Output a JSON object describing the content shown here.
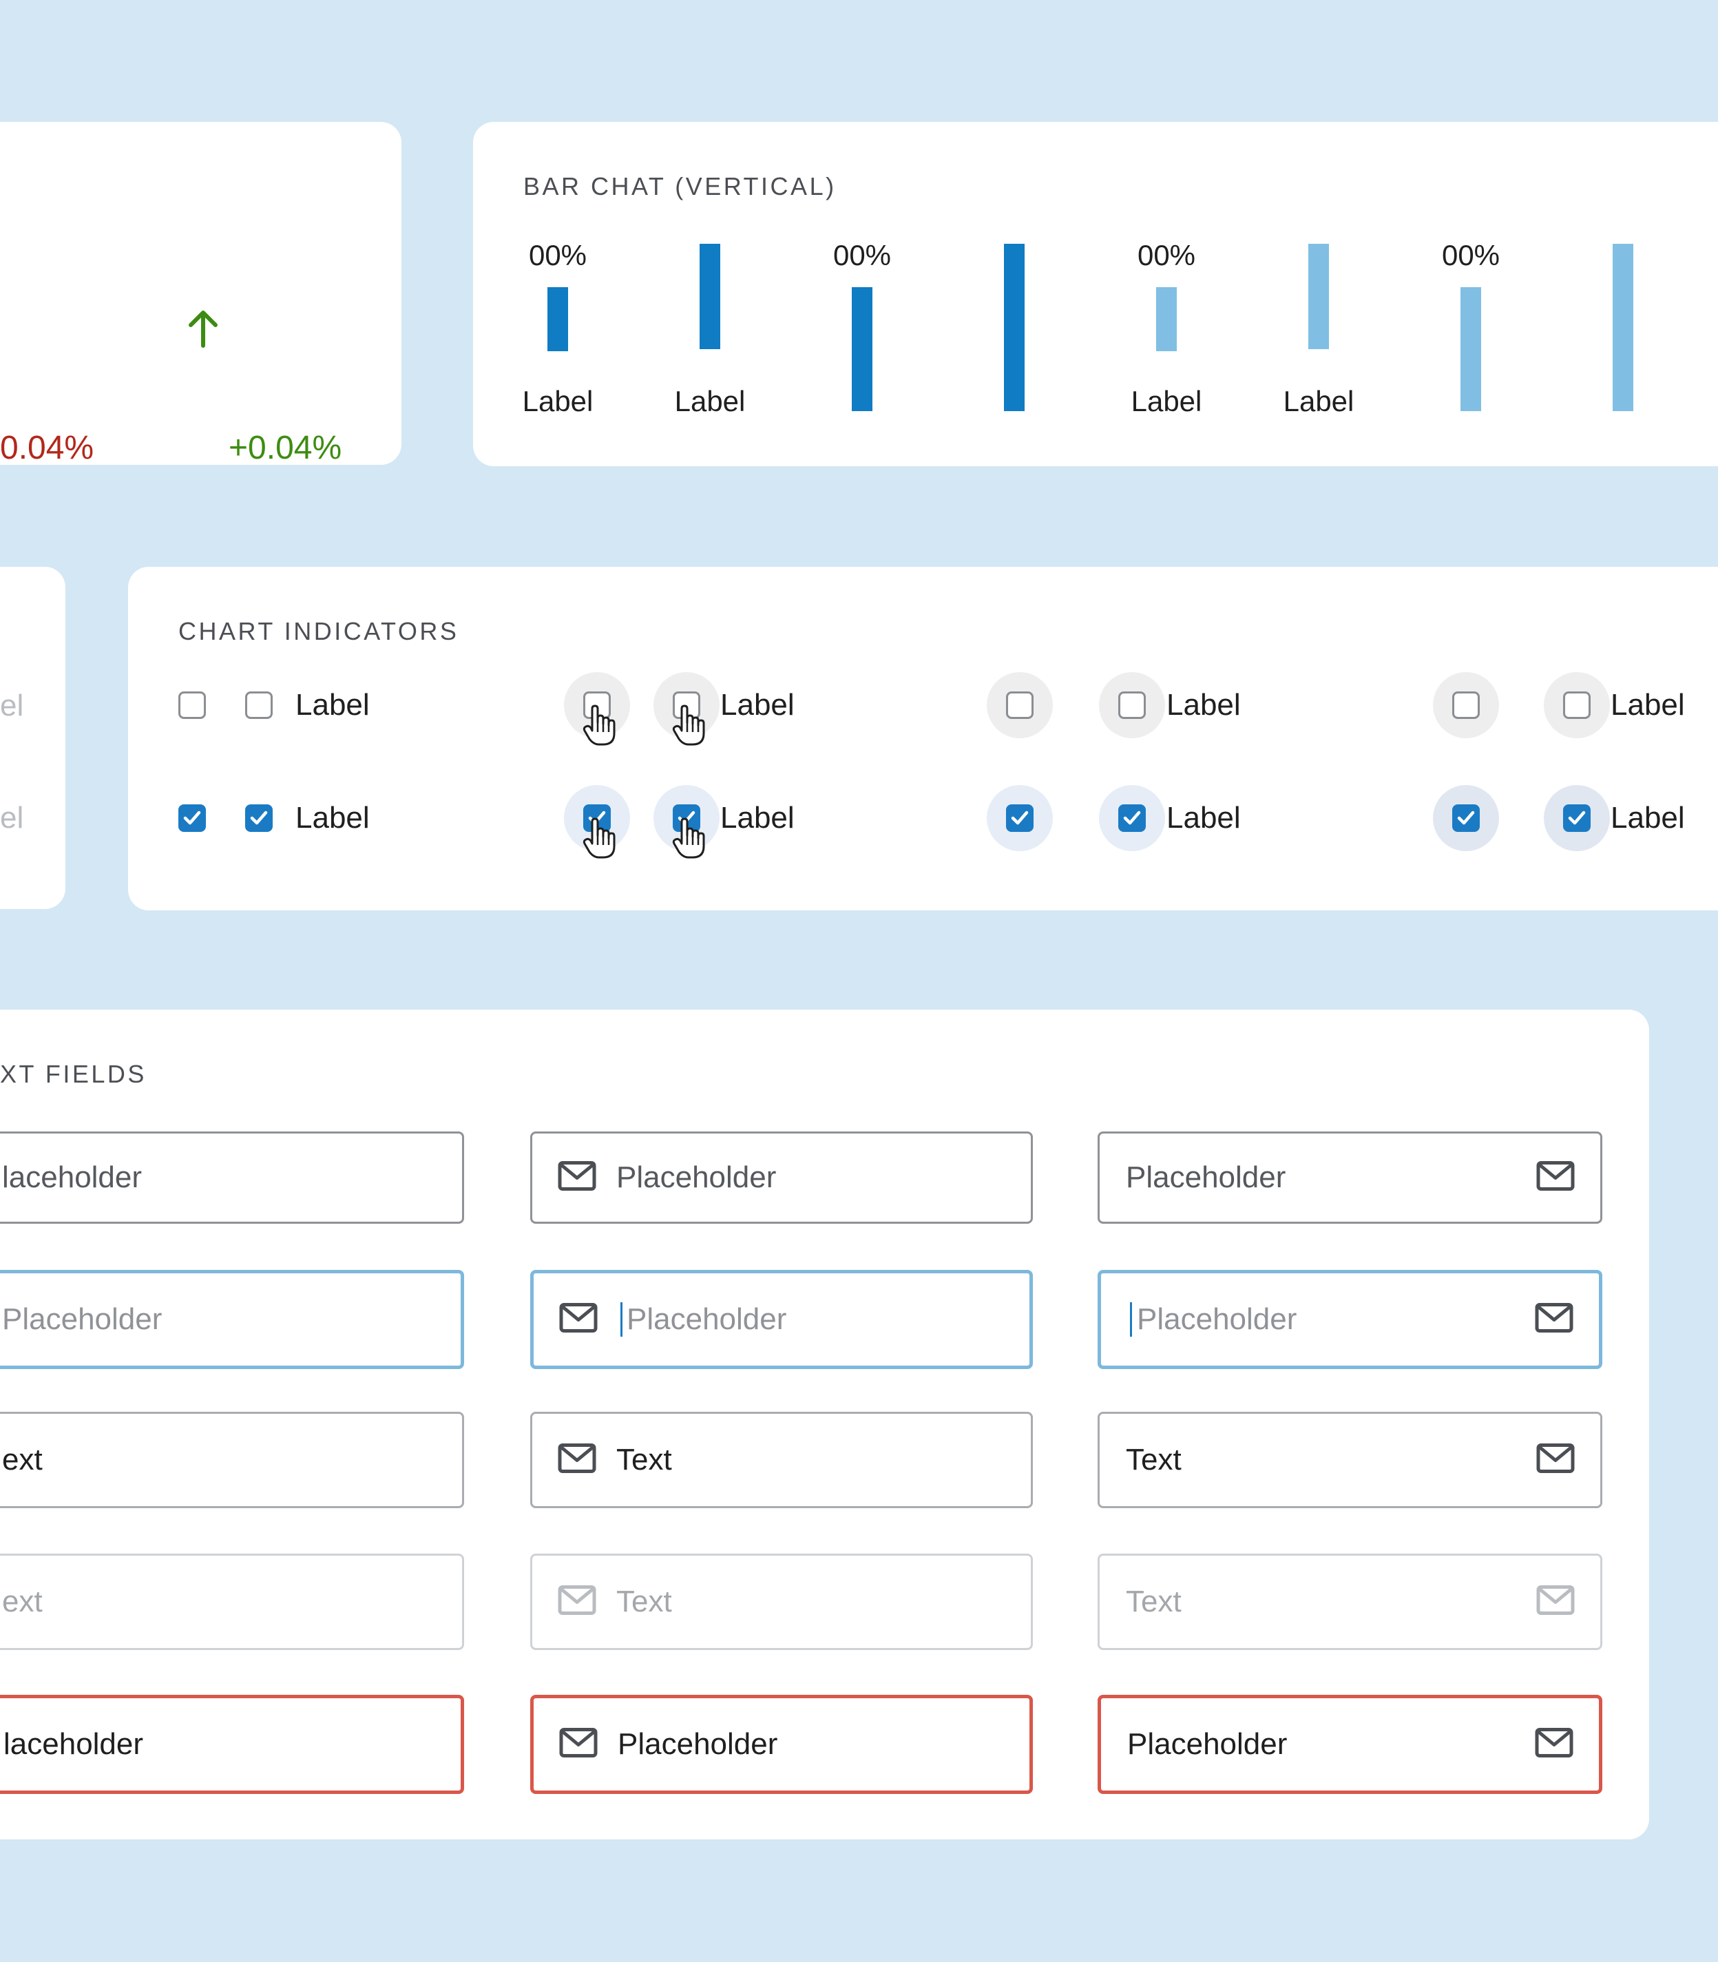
{
  "stats": {
    "negative_delta": "0.04%",
    "positive_delta": "+0.04%",
    "negative_color": "#b3271b",
    "positive_color": "#3d8c12",
    "icon": "arrow-up-icon"
  },
  "bar_chart": {
    "title": "BAR CHAT (VERTICAL)",
    "percent_label": "00%",
    "bar_label": "Label",
    "colors": {
      "dark": "#0f7cc4",
      "light": "#80bfe3"
    }
  },
  "chart_data": {
    "type": "bar",
    "title": "BAR CHAT (VERTICAL)",
    "categories": [
      "Label",
      "Label",
      "",
      "",
      "Label",
      "Label",
      "",
      ""
    ],
    "data_labels": [
      "00%",
      "",
      "00%",
      "",
      "00%",
      "",
      "00%",
      ""
    ],
    "values": [
      0.33,
      0.55,
      0.33,
      0.55,
      0.33,
      0.55,
      0.33,
      0.55
    ],
    "colors": [
      "dark",
      "dark",
      "dark",
      "dark",
      "light",
      "light",
      "light",
      "light"
    ]
  },
  "chart_indicators": {
    "title": "CHART INDICATORS",
    "label": "Label",
    "partial_labels": [
      "el",
      "el"
    ],
    "accent_color": "#1a7bc4"
  },
  "text_fields": {
    "title": "XT FIELDS",
    "rows": [
      {
        "state": "default",
        "value": "Placeholder"
      },
      {
        "state": "focus",
        "value": "Placeholder"
      },
      {
        "state": "filled",
        "value": "Text"
      },
      {
        "state": "disabled",
        "value": "Text"
      },
      {
        "state": "error",
        "value": "Placeholder"
      }
    ],
    "partial_rows": [
      "laceholder",
      "Placeholder",
      "ext",
      "ext",
      "laceholder"
    ],
    "icon": "mail-icon",
    "error_color": "#d9574a",
    "focus_color": "#7db8dc"
  }
}
